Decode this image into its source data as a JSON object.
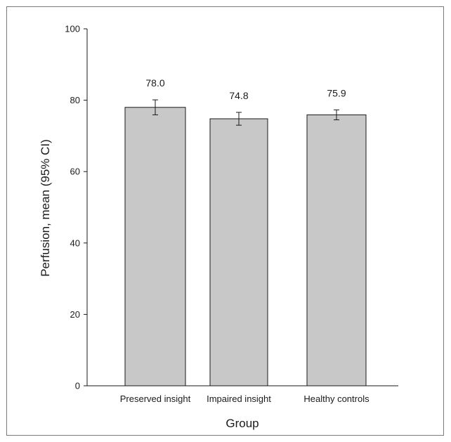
{
  "chart_data": {
    "type": "bar",
    "title": "",
    "xlabel": "Group",
    "ylabel": "Perfusion, mean (95% CI)",
    "categories": [
      "Preserved insight",
      "Impaired insight",
      "Healthy controls"
    ],
    "values": [
      78.0,
      74.8,
      75.9
    ],
    "value_labels": [
      "78.0",
      "74.8",
      "75.9"
    ],
    "error_low": [
      75.9,
      73.0,
      74.5
    ],
    "error_high": [
      80.1,
      76.6,
      77.3
    ],
    "ylim": [
      0,
      100
    ],
    "yticks": [
      0,
      20,
      40,
      60,
      80,
      100
    ],
    "grid": false,
    "legend": "none",
    "bar_color": "#c8c8c8",
    "bar_edge_color": "#1a1a1a"
  }
}
